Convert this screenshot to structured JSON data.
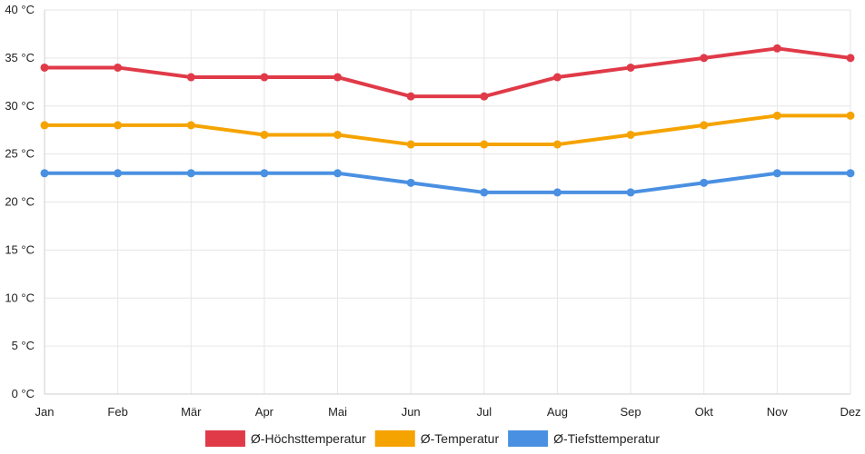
{
  "chart_data": {
    "type": "line",
    "categories": [
      "Jan",
      "Feb",
      "Mär",
      "Apr",
      "Mai",
      "Jun",
      "Jul",
      "Aug",
      "Sep",
      "Okt",
      "Nov",
      "Dez"
    ],
    "ylim": [
      0,
      40
    ],
    "yticks": [
      0,
      5,
      10,
      15,
      20,
      25,
      30,
      35,
      40
    ],
    "yunit": "°C",
    "grid": true,
    "legend_position": "bottom",
    "series": [
      {
        "name": "Ø-Höchsttemperatur",
        "color": "#e03a48",
        "values": [
          34,
          34,
          33,
          33,
          33,
          31,
          31,
          33,
          34,
          35,
          36,
          35
        ]
      },
      {
        "name": "Ø-Temperatur",
        "color": "#f5a300",
        "values": [
          28,
          28,
          28,
          27,
          27,
          26,
          26,
          26,
          27,
          28,
          29,
          29
        ]
      },
      {
        "name": "Ø-Tiefsttemperatur",
        "color": "#4a90e2",
        "values": [
          23,
          23,
          23,
          23,
          23,
          22,
          21,
          21,
          21,
          22,
          23,
          23
        ]
      }
    ]
  }
}
